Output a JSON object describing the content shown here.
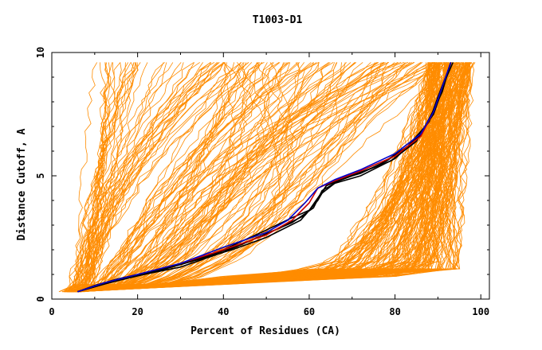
{
  "chart_data": {
    "type": "line",
    "title": "T1003-D1",
    "xlabel": "Percent of Residues (CA)",
    "ylabel": "Distance Cutoff, A",
    "xlim": [
      0,
      102
    ],
    "ylim": [
      0,
      10
    ],
    "x_ticks": [
      "0",
      "20",
      "40",
      "60",
      "80",
      "100"
    ],
    "y_ticks": [
      "0",
      "5",
      "10"
    ],
    "grid": false,
    "legend": "none",
    "colors": {
      "background_models": "#ff8c00",
      "highlight_black": "#000000",
      "highlight_blue": "#0000cc",
      "highlight_red": "#cc0000"
    },
    "series": [
      {
        "color": "highlight_black",
        "points": [
          [
            6,
            0.3
          ],
          [
            10,
            0.55
          ],
          [
            15,
            0.8
          ],
          [
            20,
            1.0
          ],
          [
            30,
            1.4
          ],
          [
            40,
            2.0
          ],
          [
            50,
            2.8
          ],
          [
            56,
            3.3
          ],
          [
            60,
            3.6
          ],
          [
            62,
            4.1
          ],
          [
            64,
            4.6
          ],
          [
            67,
            4.85
          ],
          [
            72,
            5.1
          ],
          [
            78,
            5.6
          ],
          [
            84,
            6.3
          ],
          [
            88,
            7.2
          ],
          [
            90,
            8.2
          ],
          [
            92,
            9.1
          ],
          [
            93,
            9.6
          ]
        ]
      },
      {
        "color": "highlight_black",
        "points": [
          [
            6,
            0.3
          ],
          [
            10,
            0.5
          ],
          [
            16,
            0.8
          ],
          [
            22,
            1.05
          ],
          [
            32,
            1.5
          ],
          [
            42,
            2.0
          ],
          [
            50,
            2.5
          ],
          [
            58,
            3.2
          ],
          [
            61,
            3.8
          ],
          [
            63,
            4.3
          ],
          [
            66,
            4.7
          ],
          [
            72,
            5.0
          ],
          [
            80,
            5.7
          ],
          [
            85,
            6.5
          ],
          [
            89,
            7.5
          ],
          [
            91,
            8.5
          ],
          [
            93,
            9.6
          ]
        ]
      },
      {
        "color": "highlight_black",
        "points": [
          [
            6,
            0.3
          ],
          [
            12,
            0.6
          ],
          [
            20,
            0.95
          ],
          [
            30,
            1.3
          ],
          [
            40,
            1.9
          ],
          [
            48,
            2.5
          ],
          [
            56,
            3.1
          ],
          [
            61,
            3.7
          ],
          [
            63,
            4.4
          ],
          [
            68,
            4.9
          ],
          [
            76,
            5.4
          ],
          [
            83,
            6.2
          ],
          [
            87,
            7.0
          ],
          [
            90,
            8.0
          ],
          [
            92,
            9.0
          ],
          [
            93.5,
            9.6
          ]
        ]
      },
      {
        "color": "highlight_black",
        "points": [
          [
            6,
            0.3
          ],
          [
            14,
            0.7
          ],
          [
            24,
            1.1
          ],
          [
            34,
            1.6
          ],
          [
            44,
            2.2
          ],
          [
            52,
            2.8
          ],
          [
            59,
            3.4
          ],
          [
            62,
            4.0
          ],
          [
            64,
            4.6
          ],
          [
            70,
            5.0
          ],
          [
            79,
            5.6
          ],
          [
            85,
            6.4
          ],
          [
            88,
            7.3
          ],
          [
            91,
            8.4
          ],
          [
            93,
            9.6
          ]
        ]
      },
      {
        "color": "highlight_red",
        "points": [
          [
            6,
            0.3
          ],
          [
            12,
            0.65
          ],
          [
            20,
            1.0
          ],
          [
            30,
            1.45
          ],
          [
            40,
            2.0
          ],
          [
            50,
            2.6
          ],
          [
            56,
            3.2
          ],
          [
            60,
            3.9
          ],
          [
            62,
            4.5
          ],
          [
            66,
            4.8
          ],
          [
            72,
            5.2
          ],
          [
            80,
            5.8
          ],
          [
            86,
            6.6
          ],
          [
            89,
            7.6
          ],
          [
            91,
            8.6
          ],
          [
            93,
            9.6
          ]
        ]
      },
      {
        "color": "highlight_blue",
        "points": [
          [
            6,
            0.3
          ],
          [
            12,
            0.65
          ],
          [
            20,
            1.0
          ],
          [
            30,
            1.45
          ],
          [
            40,
            2.1
          ],
          [
            50,
            2.7
          ],
          [
            55,
            3.2
          ],
          [
            59,
            3.9
          ],
          [
            62,
            4.5
          ],
          [
            66,
            4.85
          ],
          [
            72,
            5.25
          ],
          [
            80,
            5.9
          ],
          [
            86,
            6.7
          ],
          [
            89,
            7.6
          ],
          [
            91,
            8.6
          ],
          [
            93,
            9.6
          ]
        ]
      }
    ]
  }
}
